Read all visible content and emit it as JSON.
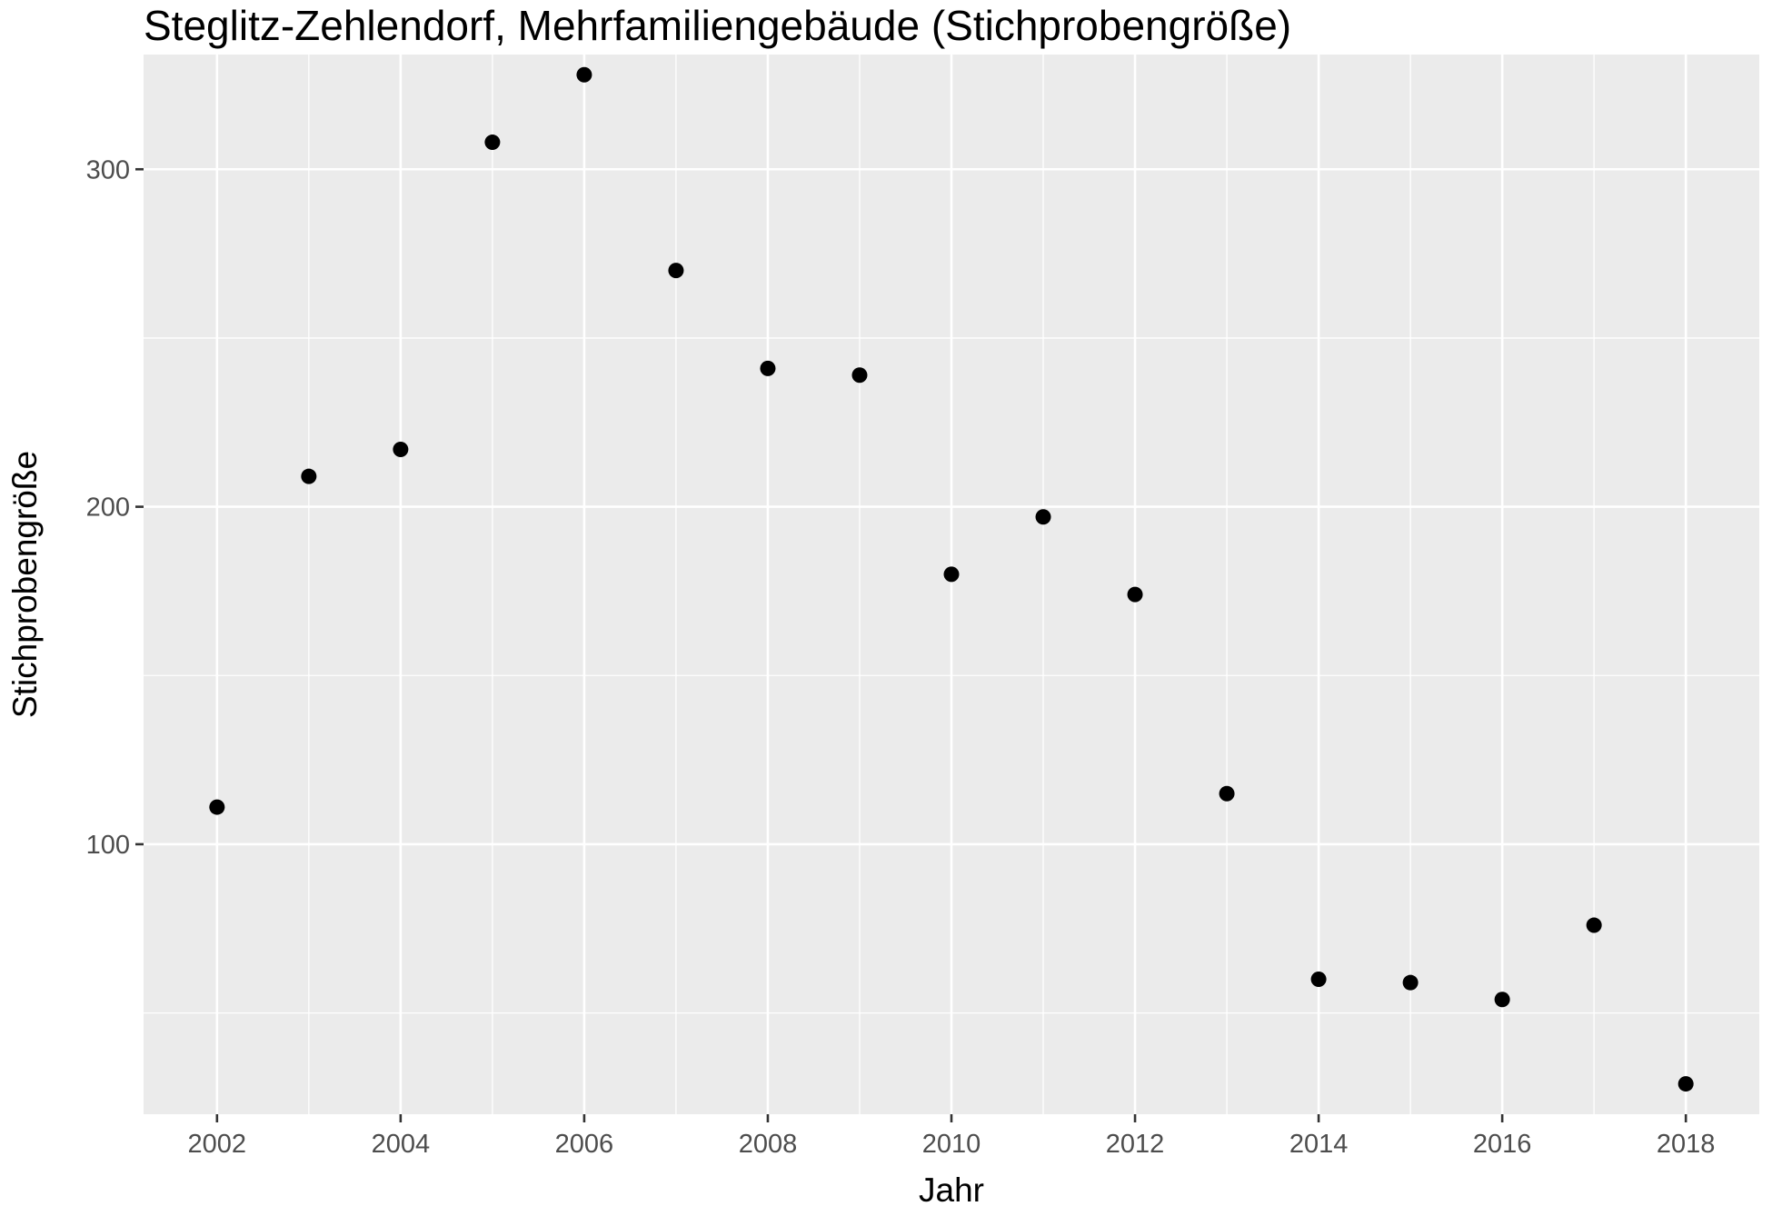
{
  "chart_data": {
    "type": "scatter",
    "title": "Steglitz-Zehlendorf, Mehrfamiliengebäude (Stichprobengröße)",
    "xlabel": "Jahr",
    "ylabel": "Stichprobengröße",
    "x_ticks": [
      "2002",
      "2004",
      "2006",
      "2008",
      "2010",
      "2012",
      "2014",
      "2016",
      "2018"
    ],
    "y_ticks": [
      "100",
      "200",
      "300"
    ],
    "xlim": [
      2001.2,
      2018.8
    ],
    "ylim": [
      20,
      334
    ],
    "grid": true,
    "point_color": "#000000",
    "panel_background": "#ebebeb",
    "series": [
      {
        "x": [
          2002,
          2003,
          2004,
          2005,
          2006,
          2007,
          2008,
          2009,
          2010,
          2011,
          2012,
          2013,
          2014,
          2015,
          2016,
          2017,
          2018
        ],
        "y": [
          111,
          209,
          217,
          308,
          328,
          270,
          241,
          239,
          180,
          197,
          174,
          115,
          60,
          59,
          54,
          76,
          29
        ]
      }
    ]
  }
}
